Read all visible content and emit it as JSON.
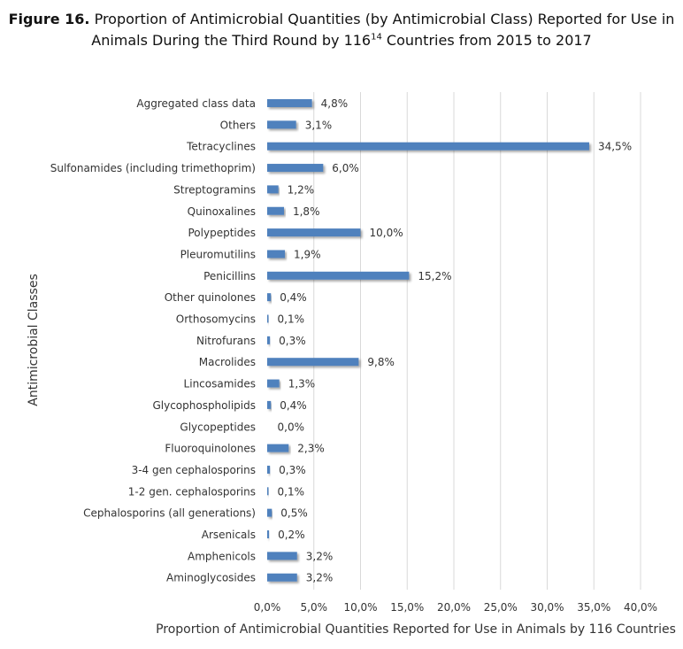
{
  "figure": {
    "title_prefix": "Figure 16.",
    "title_line1_rest": " Proportion of Antimicrobial Quantities (by Antimicrobial Class) Reported for Use in",
    "title_line2_a": "Animals During the Third Round by 116",
    "title_line2_sup": "14",
    "title_line2_b": " Countries from 2015 to 2017"
  },
  "chart_data": {
    "type": "bar",
    "orientation": "horizontal",
    "title": "Figure 16. Proportion of Antimicrobial Quantities (by Antimicrobial Class) Reported for Use in Animals During the Third Round by 116 Countries from 2015 to 2017",
    "xlabel": "Proportion of Antimicrobial Quantities Reported for Use in Animals by 116 Countries",
    "ylabel": "Antimicrobial Classes",
    "xlim": [
      0,
      40
    ],
    "x_ticks": [
      0,
      5,
      10,
      15,
      20,
      25,
      30,
      35,
      40
    ],
    "x_tick_labels": [
      "0,0%",
      "5,0%",
      "10,0%",
      "15,0%",
      "20,0%",
      "25,0%",
      "30,0%",
      "35,0%",
      "40,0%"
    ],
    "grid": "vertical",
    "bar_color": "#4f81bd",
    "categories": [
      "Aggregated class data",
      "Others",
      "Tetracyclines",
      "Sulfonamides (including trimethoprim)",
      "Streptogramins",
      "Quinoxalines",
      "Polypeptides",
      "Pleuromutilins",
      "Penicillins",
      "Other quinolones",
      "Orthosomycins",
      "Nitrofurans",
      "Macrolides",
      "Lincosamides",
      "Glycophospholipids",
      "Glycopeptides",
      "Fluoroquinolones",
      "3-4 gen cephalosporins",
      "1-2 gen. cephalosporins",
      "Cephalosporins (all generations)",
      "Arsenicals",
      "Amphenicols",
      "Aminoglycosides"
    ],
    "values": [
      4.8,
      3.1,
      34.5,
      6.0,
      1.2,
      1.8,
      10.0,
      1.9,
      15.2,
      0.4,
      0.1,
      0.3,
      9.8,
      1.3,
      0.4,
      0.0,
      2.3,
      0.3,
      0.1,
      0.5,
      0.2,
      3.2,
      3.2
    ],
    "value_labels": [
      "4,8%",
      "3,1%",
      "34,5%",
      "6,0%",
      "1,2%",
      "1,8%",
      "10,0%",
      "1,9%",
      "15,2%",
      "0,4%",
      "0,1%",
      "0,3%",
      "9,8%",
      "1,3%",
      "0,4%",
      "0,0%",
      "2,3%",
      "0,3%",
      "0,1%",
      "0,5%",
      "0,2%",
      "3,2%",
      "3,2%"
    ]
  }
}
